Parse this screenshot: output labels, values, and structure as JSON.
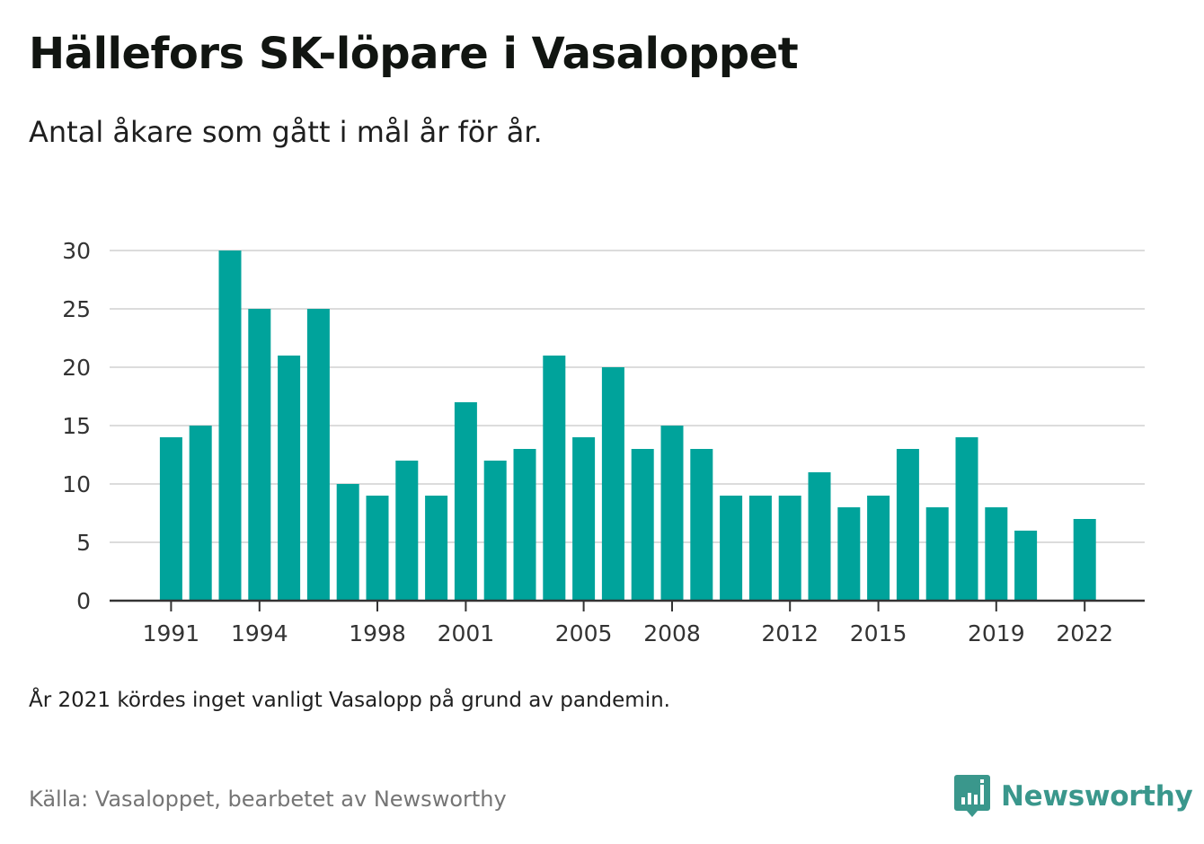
{
  "chart_data": {
    "type": "bar",
    "title": "Hällefors SK-löpare i Vasaloppet",
    "subtitle": "Antal åkare som gått i mål år för år.",
    "xlabel": "",
    "ylabel": "",
    "categories": [
      1991,
      1992,
      1993,
      1994,
      1995,
      1996,
      1997,
      1998,
      1999,
      2000,
      2001,
      2002,
      2003,
      2004,
      2005,
      2006,
      2007,
      2008,
      2009,
      2010,
      2011,
      2012,
      2013,
      2014,
      2015,
      2016,
      2017,
      2018,
      2019,
      2020,
      2021,
      2022
    ],
    "values": [
      14,
      15,
      30,
      25,
      21,
      25,
      10,
      9,
      12,
      9,
      17,
      12,
      13,
      21,
      14,
      20,
      13,
      15,
      13,
      9,
      9,
      9,
      11,
      8,
      9,
      13,
      8,
      14,
      8,
      6,
      null,
      7
    ],
    "x_tick_labels": [
      "1991",
      "1994",
      "1998",
      "2001",
      "2005",
      "2008",
      "2012",
      "2015",
      "2019",
      "2022"
    ],
    "y_tick_labels": [
      "0",
      "5",
      "10",
      "15",
      "20",
      "25",
      "30"
    ],
    "ylim": [
      0,
      30
    ],
    "grid": true,
    "legend": "none",
    "bar_color": "#00a39b",
    "grid_color": "#dcdcdc",
    "axis_color": "#333333"
  },
  "note": "År 2021 kördes inget vanligt Vasalopp på grund av pandemin.",
  "source": "Källa: Vasaloppet, bearbetet av Newsworthy",
  "logo": {
    "text": "Newsworthy",
    "icon": "newsworthy-logo-icon",
    "color": "#3a978c"
  }
}
